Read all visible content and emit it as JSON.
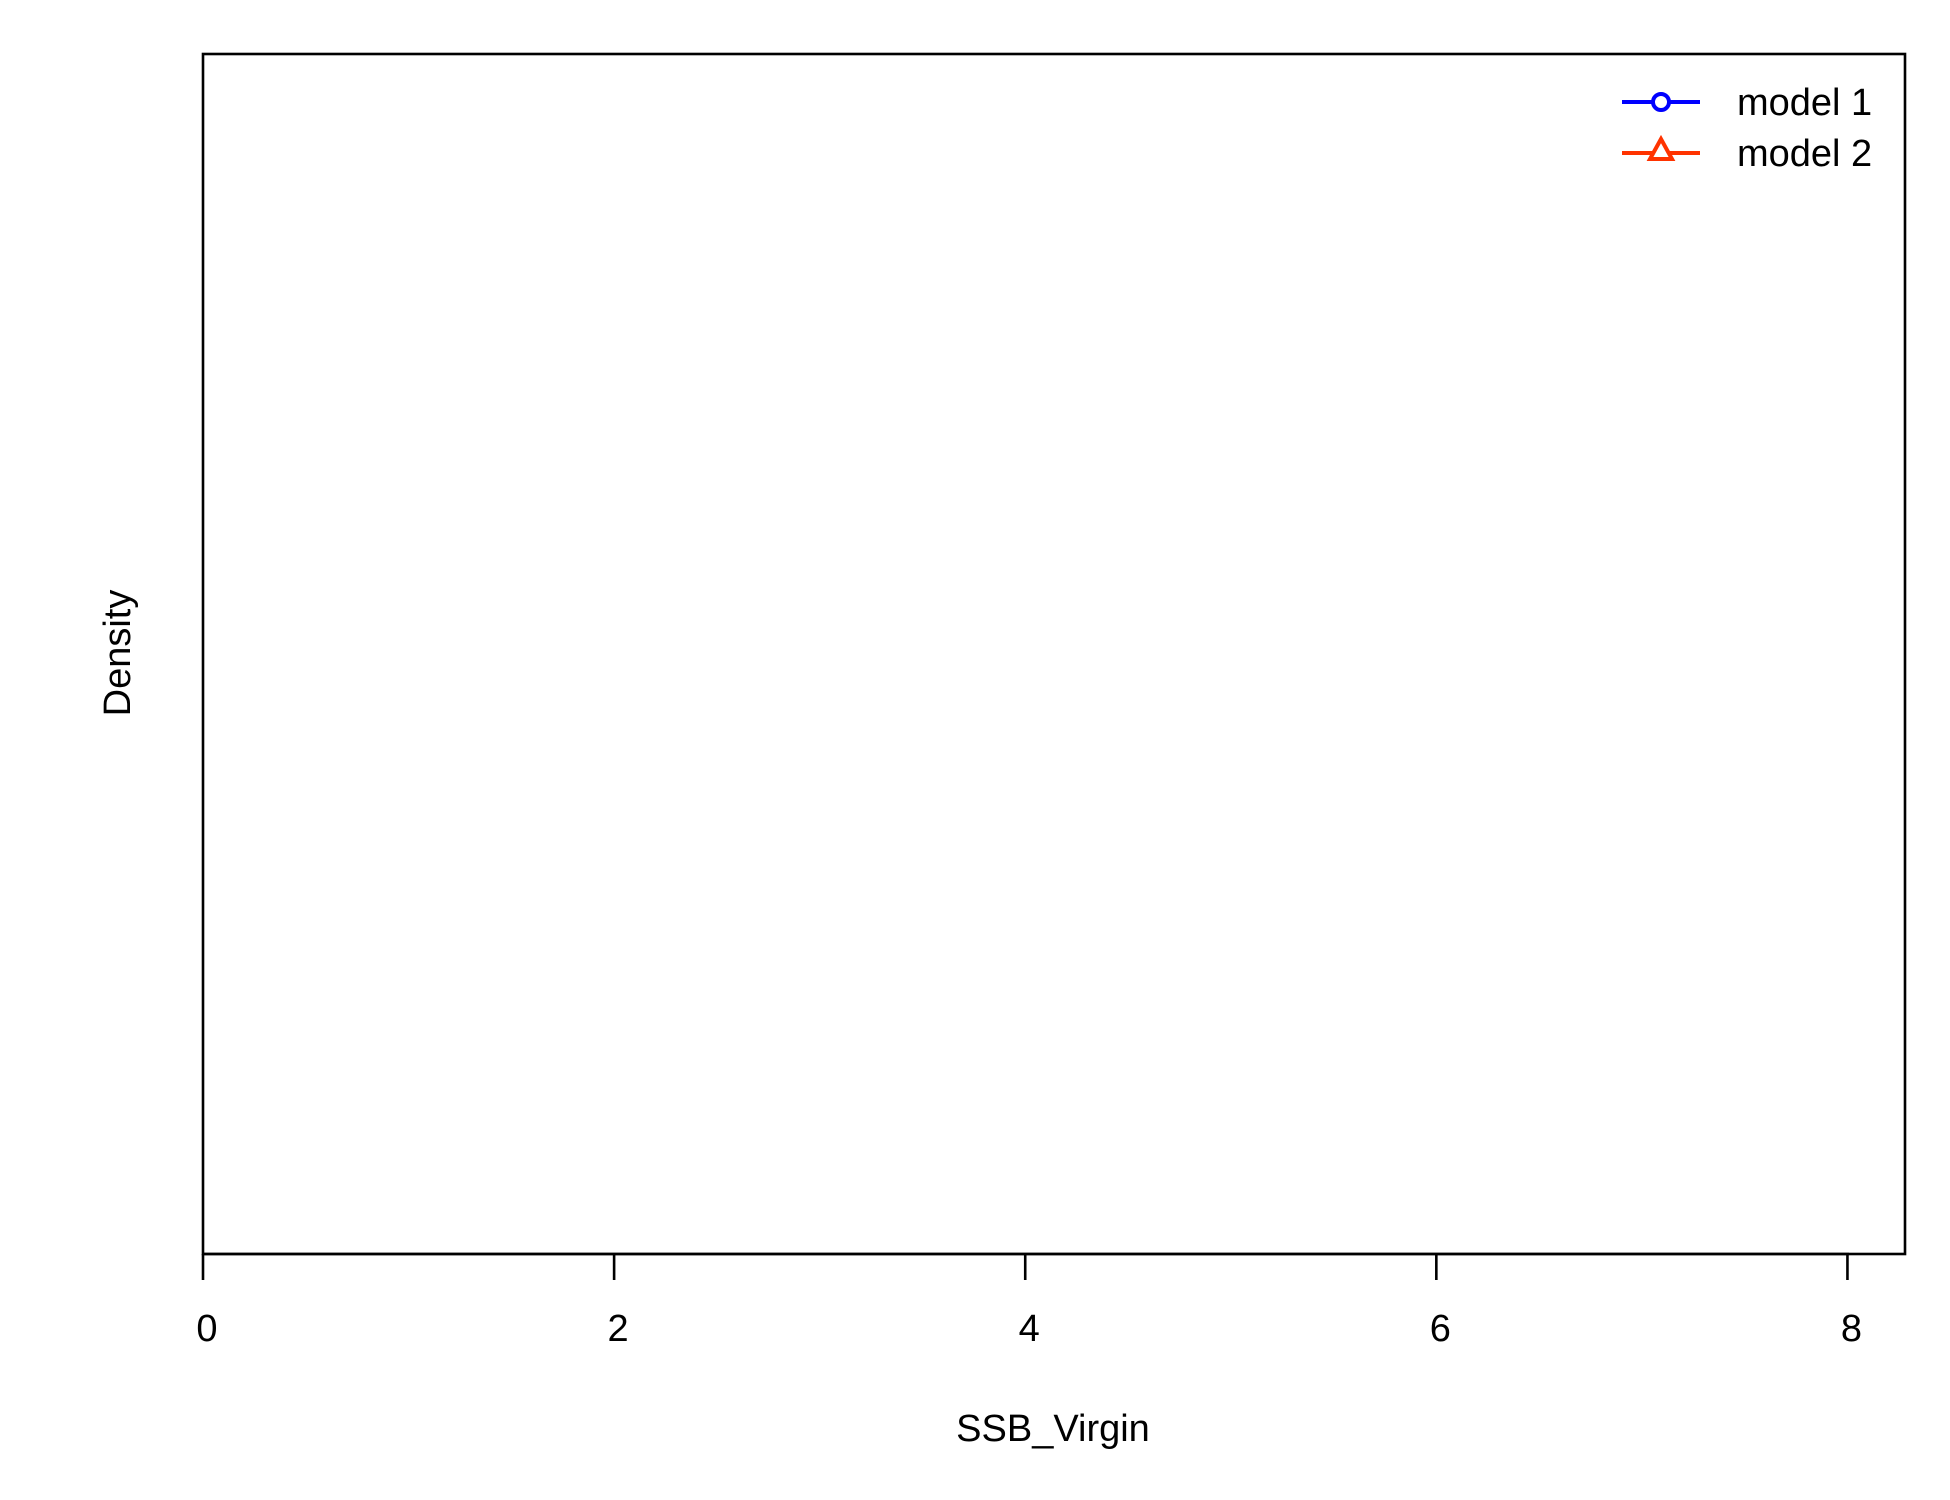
{
  "chart_data": {
    "type": "line",
    "title": "",
    "xlabel": "SSB_Virgin",
    "ylabel": "Density",
    "xlim": [
      0,
      8.28
    ],
    "x_ticks": [
      0,
      2,
      4,
      6,
      8
    ],
    "x_tick_labels": [
      "0",
      "2",
      "4",
      "6",
      "8"
    ],
    "y_ticks": [],
    "grid": false,
    "legend_position": "top-right",
    "series": [
      {
        "name": "model 1",
        "color": "#0000ff",
        "marker": "circle",
        "x": [],
        "y": []
      },
      {
        "name": "model 2",
        "color": "#ff3300",
        "marker": "triangle",
        "x": [],
        "y": []
      }
    ]
  }
}
